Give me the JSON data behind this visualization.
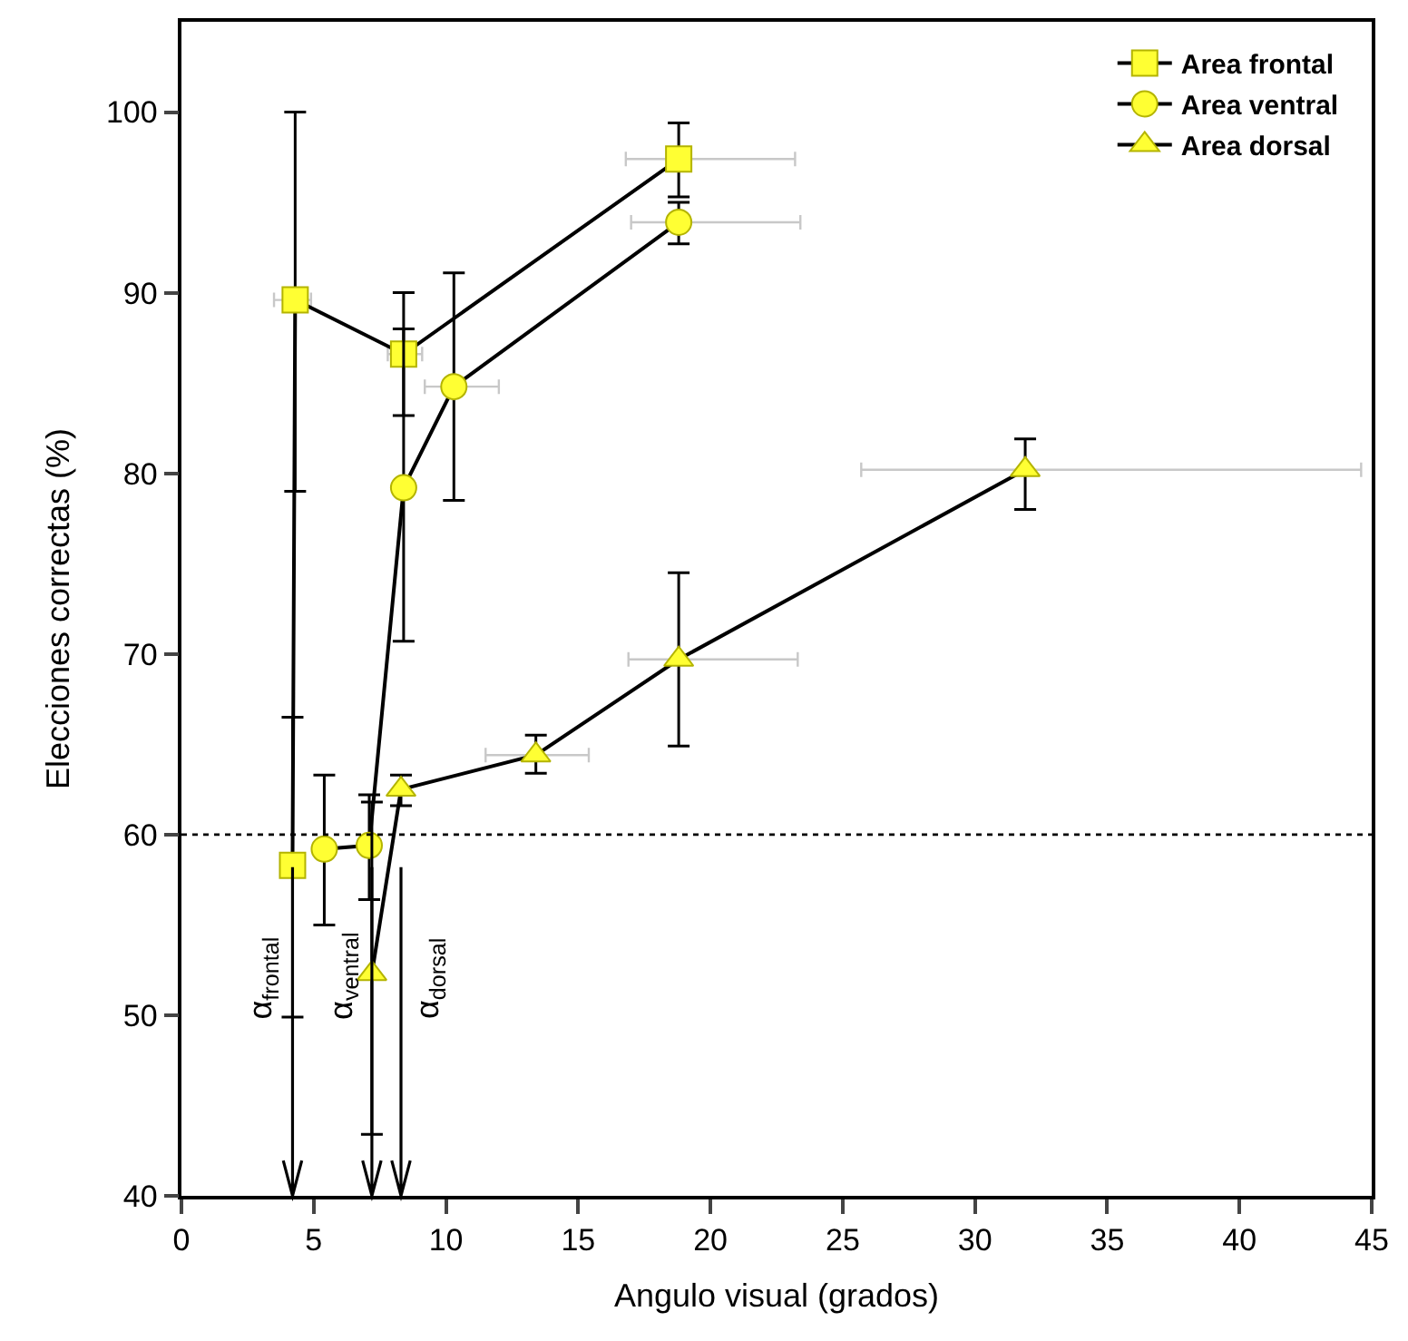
{
  "chart_data": {
    "type": "line",
    "xlabel": "Angulo visual (grados)",
    "ylabel": "Elecciones correctas (%)",
    "xlim": [
      0,
      45
    ],
    "xticks": [
      0,
      5,
      10,
      15,
      20,
      25,
      30,
      35,
      40,
      45
    ],
    "ylim": [
      40,
      105
    ],
    "yticks": [
      40,
      50,
      60,
      70,
      80,
      90,
      100
    ],
    "legend": "top right",
    "line_style": "solid",
    "series": [
      {
        "name": "Area frontal",
        "color": "#ffff33",
        "marker": "square",
        "x": [
          4.2,
          4.3,
          8.4,
          18.8
        ],
        "values": [
          58.3,
          89.6,
          86.6,
          97.4
        ],
        "errors": [
          [
            49.9,
            66.5
          ],
          [
            79.0,
            100
          ],
          [
            83.2,
            90.0
          ],
          [
            95.3,
            99.4
          ]
        ],
        "xerrors": [
          null,
          [
            3.5,
            4.9
          ],
          [
            7.8,
            9.1
          ],
          [
            16.8,
            23.2
          ]
        ]
      },
      {
        "name": "Area ventral",
        "color": "#ffff33",
        "marker": "circle",
        "x": [
          5.4,
          7.1,
          8.4,
          10.3,
          18.8
        ],
        "values": [
          59.2,
          59.4,
          79.2,
          84.8,
          93.9
        ],
        "errors": [
          [
            55.0,
            63.3
          ],
          [
            56.4,
            62.2
          ],
          [
            70.7,
            88.0
          ],
          [
            78.5,
            91.1
          ],
          [
            92.7,
            95.0
          ]
        ],
        "xerrors": [
          null,
          null,
          null,
          [
            9.2,
            12.0
          ],
          [
            17.0,
            23.4
          ]
        ]
      },
      {
        "name": "Area dorsal",
        "color": "#ffff33",
        "marker": "triangle",
        "x": [
          7.2,
          8.3,
          13.4,
          18.8,
          31.9
        ],
        "values": [
          52.3,
          62.5,
          64.4,
          69.7,
          80.2
        ],
        "errors": [
          [
            43.4,
            61.8
          ],
          [
            61.6,
            63.3
          ],
          [
            63.4,
            65.5
          ],
          [
            64.9,
            74.5
          ],
          [
            78.0,
            81.9
          ]
        ],
        "xerrors": [
          null,
          null,
          [
            11.5,
            15.4
          ],
          [
            16.9,
            23.3
          ],
          [
            25.7,
            44.6
          ]
        ]
      }
    ],
    "ref_lines": [
      {
        "axis": "y",
        "value": 60,
        "line_style": "dotted"
      },
      {
        "axis": "x",
        "value": 4.2,
        "label": "α$_{frontal}$"
      },
      {
        "axis": "x",
        "value": 7.2,
        "label": "α$_{ventral}$"
      },
      {
        "axis": "x",
        "value": 8.3,
        "label": "α$_{dorsal}$"
      }
    ]
  }
}
